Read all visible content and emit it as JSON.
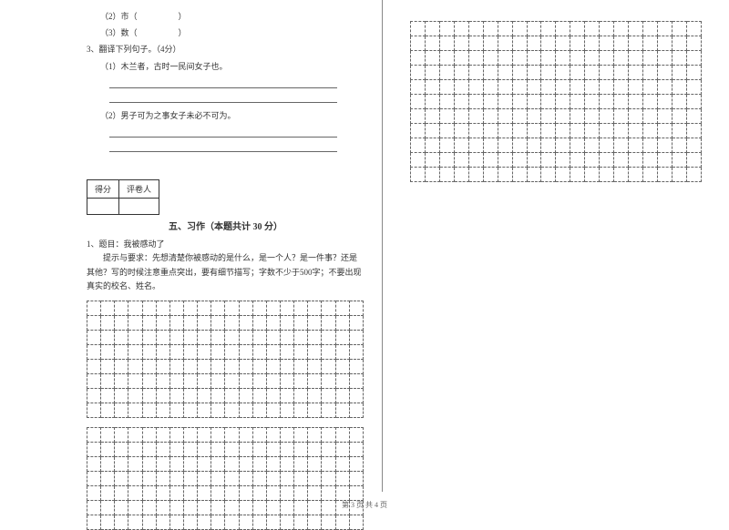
{
  "questions": {
    "q2_2": "（2）市（　　　　　）",
    "q2_3": "（3）数（　　　　　）",
    "q3": "3、翻译下列句子。（4分）",
    "q3_1": "（1）木兰者，古时一民间女子也。",
    "q3_2": "（2）男子可为之事女子未必不可为。"
  },
  "scoreTable": {
    "col1": "得分",
    "col2": "评卷人"
  },
  "section5": {
    "title": "五、习作（本题共计 30 分）",
    "q1": "1、题目：我被感动了",
    "hint": "提示与要求：先想清楚你被感动的是什么，是一个人？是一件事？还是其他？写的时候注意重点突出，要有细节描写；字数不少于500字；不要出现真实的校名、姓名。"
  },
  "footer": "第 3 页 共 4 页",
  "grid": {
    "leftBlock1Rows": 8,
    "leftBlock2Rows": 7,
    "rightBlockRows": 11,
    "cols": 20
  },
  "styling": {
    "fontSize": 9,
    "lineHeight": 1.8,
    "borderColor": "#666666",
    "textColor": "#333333",
    "background": "#ffffff",
    "gridCellSize": 16,
    "gridBorderStyle": "dashed"
  }
}
